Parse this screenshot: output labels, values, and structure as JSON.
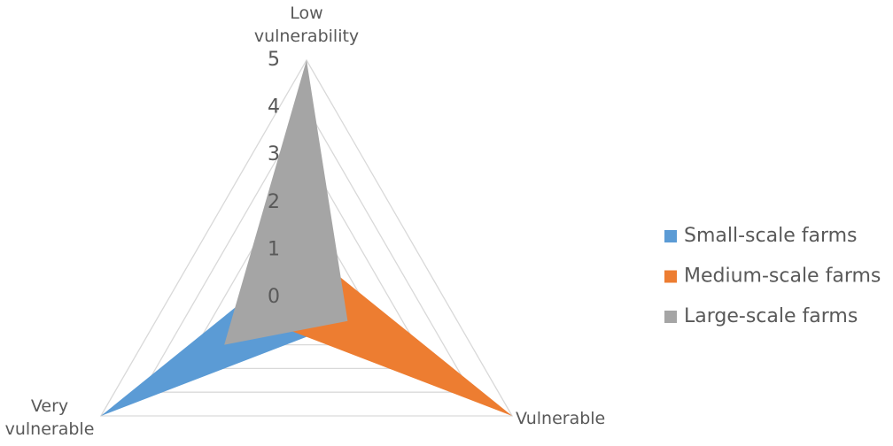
{
  "chart_data": {
    "type": "radar",
    "categories": [
      "Low vulnerability",
      "Vulnerable",
      "Very vulnerable"
    ],
    "series": [
      {
        "name": "Small-scale farms",
        "color": "#5b9bd5",
        "values": [
          1,
          1,
          5
        ]
      },
      {
        "name": "Medium-scale farms",
        "color": "#ed7d31",
        "values": [
          1,
          5,
          1
        ]
      },
      {
        "name": "Large-scale farms",
        "color": "#a5a5a5",
        "values": [
          5,
          1,
          2
        ]
      }
    ],
    "ylim": [
      0,
      5
    ],
    "yticks": [
      0,
      1,
      2,
      3,
      4,
      5
    ],
    "grid": true,
    "legend": "right"
  }
}
